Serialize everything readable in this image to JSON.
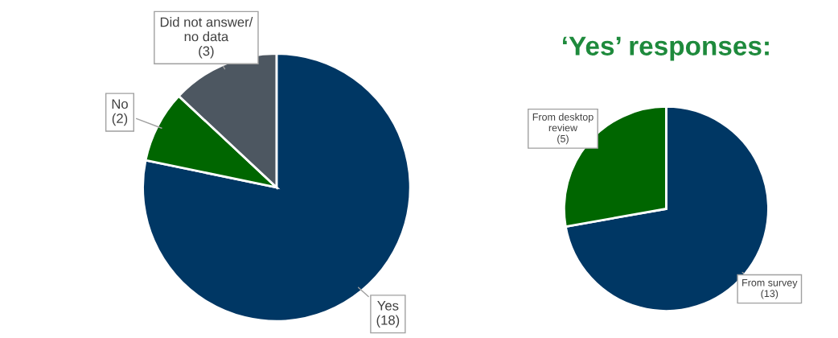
{
  "chart_data": [
    {
      "type": "pie",
      "categories": [
        "Yes",
        "No",
        "Did not answer/\nno data"
      ],
      "values": [
        18,
        2,
        3
      ],
      "value_labels": [
        "(18)",
        "(2)",
        "(3)"
      ],
      "colors": [
        "#003764",
        "#006600",
        "#4d5761"
      ]
    },
    {
      "type": "pie",
      "title": "‘Yes’ responses:",
      "categories": [
        "From survey",
        "From desktop\nreview"
      ],
      "values": [
        13,
        5
      ],
      "value_labels": [
        "(13)",
        "(5)"
      ],
      "colors": [
        "#003764",
        "#006600"
      ]
    }
  ]
}
